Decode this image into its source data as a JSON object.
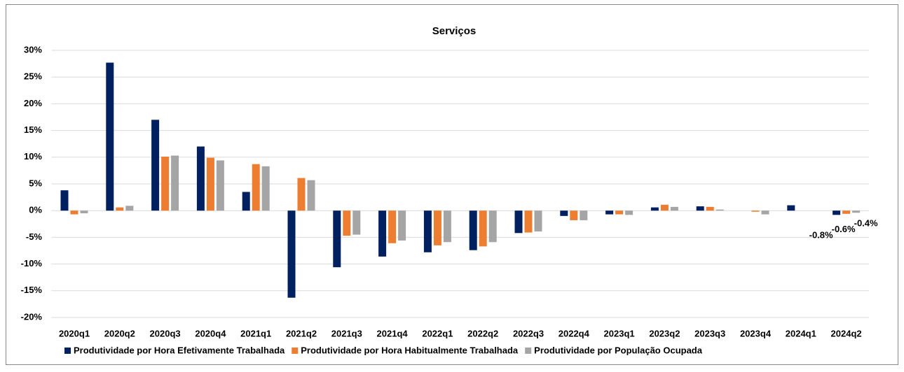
{
  "chart_data": {
    "type": "bar",
    "title": "Serviços",
    "categories": [
      "2020q1",
      "2020q2",
      "2020q3",
      "2020q4",
      "2021q1",
      "2021q2",
      "2021q3",
      "2021q4",
      "2022q1",
      "2022q2",
      "2022q3",
      "2022q4",
      "2023q1",
      "2023q2",
      "2023q3",
      "2023q4",
      "2024q1",
      "2024q2"
    ],
    "series": [
      {
        "name": "Produtividade por Hora Efetivamente Trabalhada",
        "color": "#002060",
        "values": [
          3.8,
          27.7,
          17.0,
          12.0,
          3.5,
          -16.3,
          -10.6,
          -8.6,
          -7.8,
          -7.4,
          -4.2,
          -1.0,
          -0.7,
          0.6,
          0.8,
          0.0,
          1.0,
          -0.8
        ],
        "value_labels": [
          null,
          null,
          null,
          null,
          null,
          null,
          null,
          null,
          null,
          null,
          null,
          null,
          null,
          null,
          null,
          null,
          null,
          "-0.8%"
        ]
      },
      {
        "name": "Produtividade por Hora Habitualmente Trabalhada",
        "color": "#ed7d31",
        "values": [
          -0.7,
          0.6,
          10.1,
          9.9,
          8.7,
          6.1,
          -4.7,
          -6.1,
          -6.5,
          -6.7,
          -4.1,
          -1.8,
          -0.7,
          1.1,
          0.7,
          -0.2,
          0.0,
          -0.6
        ],
        "value_labels": [
          null,
          null,
          null,
          null,
          null,
          null,
          null,
          null,
          null,
          null,
          null,
          null,
          null,
          null,
          null,
          null,
          null,
          "-0.6%"
        ]
      },
      {
        "name": "Produtividade por População Ocupada",
        "color": "#a5a5a5",
        "values": [
          -0.5,
          0.9,
          10.3,
          9.4,
          8.3,
          5.7,
          -4.5,
          -5.6,
          -5.9,
          -5.9,
          -3.9,
          -1.8,
          -0.8,
          0.7,
          0.2,
          -0.7,
          0.0,
          -0.4
        ],
        "value_labels": [
          null,
          null,
          null,
          null,
          null,
          null,
          null,
          null,
          null,
          null,
          null,
          null,
          null,
          null,
          null,
          null,
          null,
          "-0.4%"
        ]
      }
    ],
    "ylim": [
      -20,
      30
    ],
    "yticks": [
      {
        "value": -20,
        "label": "-20%"
      },
      {
        "value": -15,
        "label": "-15%"
      },
      {
        "value": -10,
        "label": "-10%"
      },
      {
        "value": -5,
        "label": "-5%"
      },
      {
        "value": 0,
        "label": "0%"
      },
      {
        "value": 5,
        "label": "5%"
      },
      {
        "value": 10,
        "label": "10%"
      },
      {
        "value": 15,
        "label": "15%"
      },
      {
        "value": 20,
        "label": "20%"
      },
      {
        "value": 25,
        "label": "25%"
      },
      {
        "value": 30,
        "label": "30%"
      }
    ],
    "grid": true,
    "legend": "bottom"
  }
}
